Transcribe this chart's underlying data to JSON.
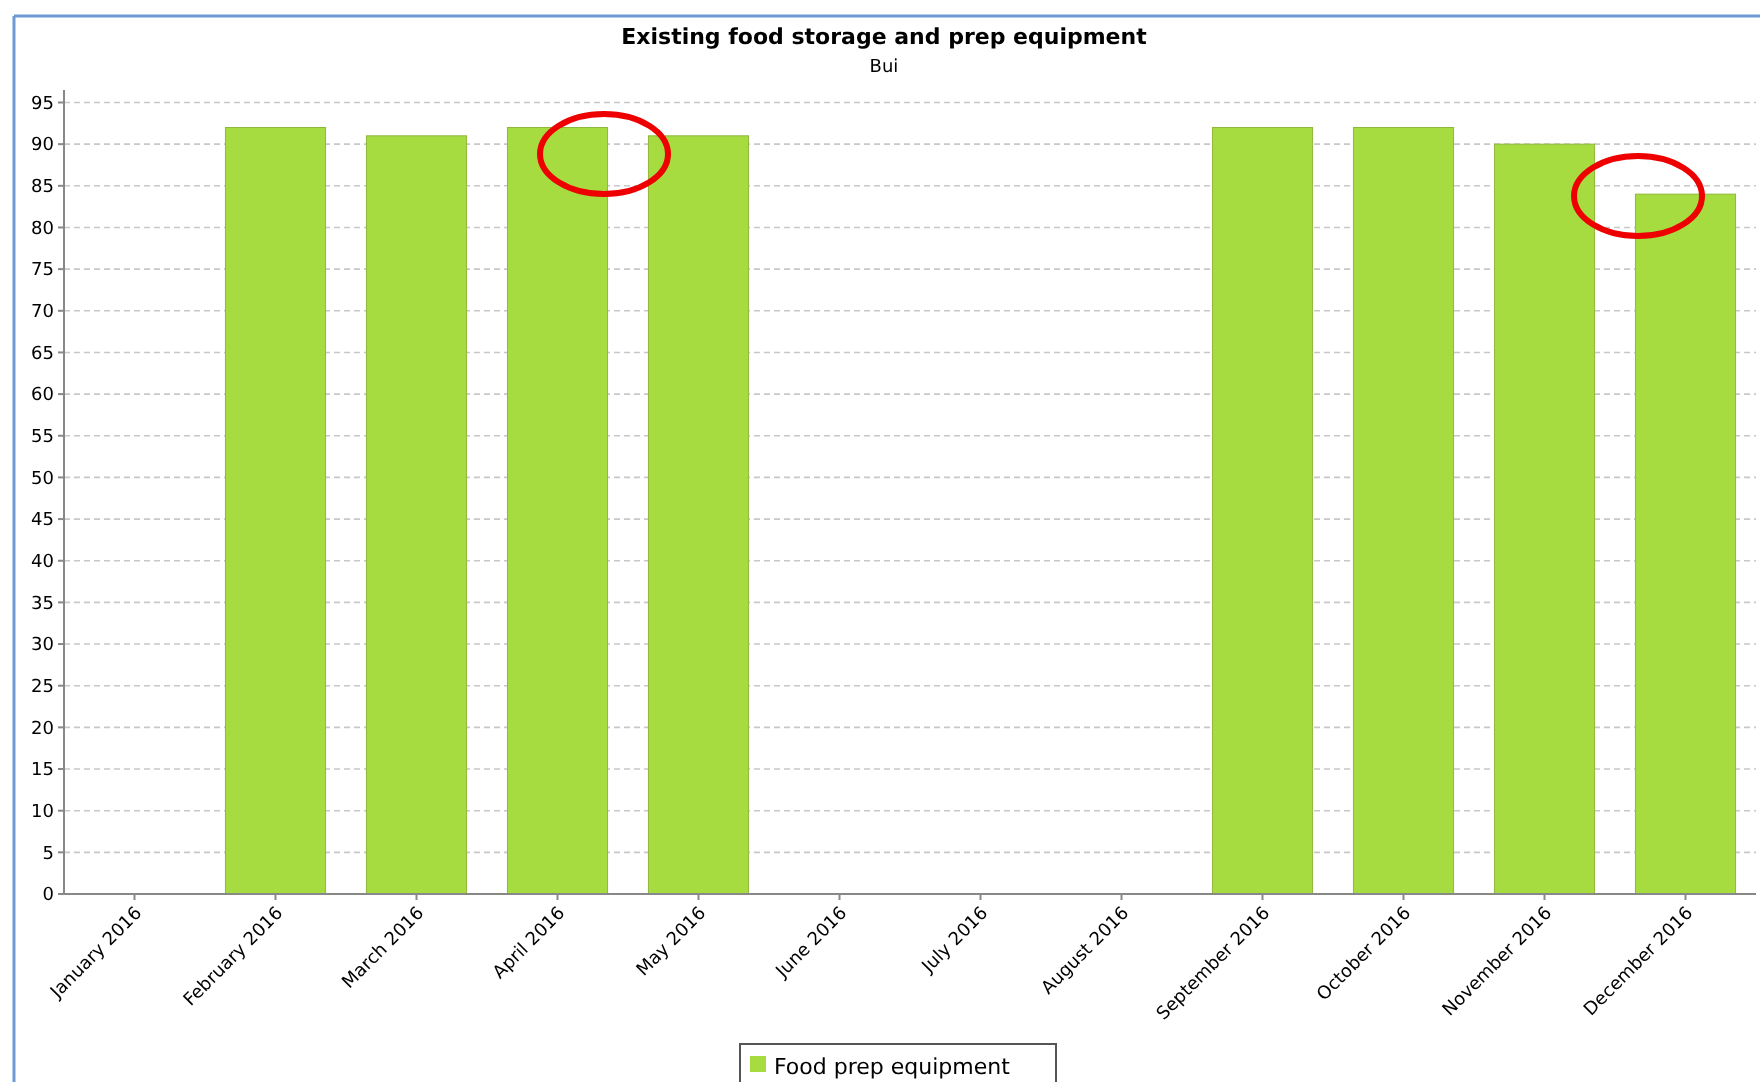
{
  "chart_data": {
    "type": "bar",
    "title": "Existing food storage and prep equipment",
    "subtitle": "Bui",
    "categories": [
      "January 2016",
      "February 2016",
      "March 2016",
      "April 2016",
      "May 2016",
      "June 2016",
      "July 2016",
      "August 2016",
      "September 2016",
      "October 2016",
      "November 2016",
      "December 2016"
    ],
    "series": [
      {
        "name": "Food prep equipment",
        "color": "#a6dc40",
        "values": [
          null,
          92,
          91,
          92,
          91,
          null,
          null,
          null,
          92,
          92,
          90,
          84
        ]
      }
    ],
    "ylim": [
      0,
      96.5
    ],
    "yticks": [
      0,
      5,
      10,
      15,
      20,
      25,
      30,
      35,
      40,
      45,
      50,
      55,
      60,
      65,
      70,
      75,
      80,
      85,
      90,
      95
    ],
    "grid": "y",
    "legend": "bottom"
  }
}
